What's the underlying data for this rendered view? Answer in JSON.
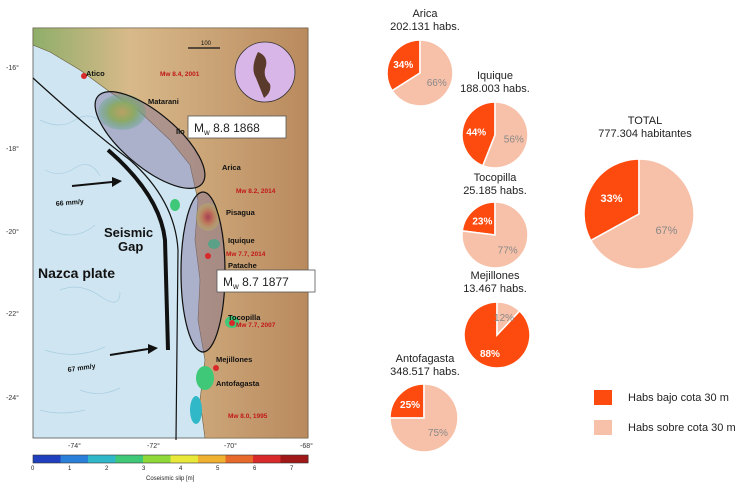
{
  "map": {
    "lat_ticks": [
      "-16°",
      "-18°",
      "-20°",
      "-22°",
      "-24°"
    ],
    "lon_ticks": [
      "-74°",
      "-72°",
      "-70°",
      "-68°"
    ],
    "places": [
      "Atico",
      "Matarani",
      "Ilo",
      "Arica",
      "Pisagua",
      "Iquique",
      "Patache",
      "Tocopilla",
      "Mejillones",
      "Antofagasta"
    ],
    "events": [
      "Mw 8.4, 2001",
      "Mw 8.2, 2014",
      "Mw 7.7, 2014",
      "Mw 7.7, 2007",
      "Mw 8.0, 1995"
    ],
    "region_labels": [
      "Seismic",
      "Gap",
      "Nazca plate"
    ],
    "rate_top": "66 mm/y",
    "rate_bottom": "67 mm/y",
    "quake_1868": {
      "prefix": "M",
      "sub": "w",
      "rest": " 8.8 1868"
    },
    "quake_1877": {
      "prefix": "M",
      "sub": "w",
      "rest": " 8.7 1877"
    },
    "colorbar": {
      "ticks": [
        "0",
        "1",
        "2",
        "3",
        "4",
        "5",
        "6",
        "7"
      ],
      "label": "Coseismic slip [m]",
      "colors": [
        "#1f3fbf",
        "#2a7fd8",
        "#30b8c8",
        "#3fc878",
        "#8fd83a",
        "#e8e83a",
        "#f0b030",
        "#e86a2a",
        "#d82a2a",
        "#a01818"
      ]
    },
    "scale_bar": "100"
  },
  "legend": {
    "low": "Habs bajo cota 30 m",
    "high": "Habs sobre cota 30 m"
  },
  "colors": {
    "low": "#fd4b0f",
    "high": "#f7c1a9",
    "ocean": "#cfe6f2",
    "land": "#c9a77a"
  },
  "chart_data": {
    "type": "pie",
    "series_names": [
      "Habs bajo cota 30 m",
      "Habs sobre cota 30 m"
    ],
    "pies": [
      {
        "title": "Arica",
        "subtitle": "202.131 habs.",
        "values": [
          34,
          66
        ],
        "labels": [
          "34%",
          "66%"
        ]
      },
      {
        "title": "Iquique",
        "subtitle": "188.003 habs.",
        "values": [
          44,
          56
        ],
        "labels": [
          "44%",
          "56%"
        ]
      },
      {
        "title": "Tocopilla",
        "subtitle": "25.185 habs.",
        "values": [
          23,
          77
        ],
        "labels": [
          "23%",
          "77%"
        ]
      },
      {
        "title": "Mejillones",
        "subtitle": "13.467 habs.",
        "values": [
          88,
          12
        ],
        "labels": [
          "88%",
          "12%"
        ]
      },
      {
        "title": "Antofagasta",
        "subtitle": "348.517 habs.",
        "values": [
          25,
          75
        ],
        "labels": [
          "25%",
          "75%"
        ]
      },
      {
        "title": "TOTAL",
        "subtitle": "777.304 habitantes",
        "values": [
          33,
          67
        ],
        "labels": [
          "33%",
          "67%"
        ]
      }
    ]
  }
}
